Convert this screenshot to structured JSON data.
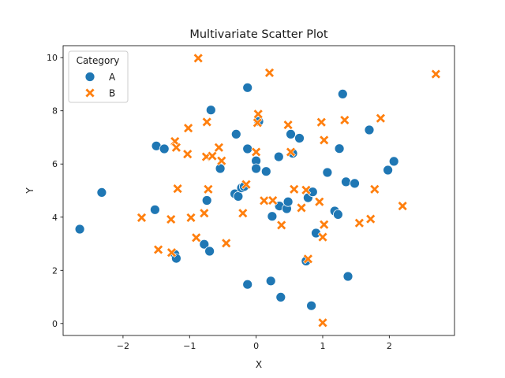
{
  "chart_data": {
    "type": "scatter",
    "title": "Multivariate Scatter Plot",
    "xlabel": "X",
    "ylabel": "Y",
    "xlim": [
      -2.9,
      2.98
    ],
    "ylim": [
      -0.45,
      10.45
    ],
    "xticks": [
      -2,
      -1,
      0,
      1,
      2
    ],
    "yticks": [
      0,
      2,
      4,
      6,
      8,
      10
    ],
    "xtick_labels": [
      "−2",
      "−1",
      "0",
      "1",
      "2"
    ],
    "ytick_labels": [
      "0",
      "2",
      "4",
      "6",
      "8",
      "10"
    ],
    "grid": false,
    "legend": {
      "title": "Category",
      "placement": "top-left",
      "entries": [
        "A",
        "B"
      ]
    },
    "series": [
      {
        "name": "A",
        "marker": "circle",
        "color": "#1f77b4",
        "points": [
          [
            -2.65,
            3.55
          ],
          [
            -2.32,
            4.93
          ],
          [
            -1.52,
            4.28
          ],
          [
            -1.5,
            6.68
          ],
          [
            -1.38,
            6.57
          ],
          [
            -1.22,
            2.6
          ],
          [
            -1.2,
            2.45
          ],
          [
            -0.78,
            2.98
          ],
          [
            -0.74,
            4.63
          ],
          [
            -0.7,
            2.72
          ],
          [
            -0.68,
            8.03
          ],
          [
            -0.54,
            5.83
          ],
          [
            -0.32,
            4.88
          ],
          [
            -0.3,
            7.12
          ],
          [
            -0.27,
            4.78
          ],
          [
            -0.22,
            5.1
          ],
          [
            -0.18,
            5.15
          ],
          [
            -0.13,
            6.57
          ],
          [
            -0.13,
            8.87
          ],
          [
            -0.13,
            1.47
          ],
          [
            0.0,
            6.12
          ],
          [
            0.0,
            5.83
          ],
          [
            0.04,
            7.6
          ],
          [
            0.15,
            5.72
          ],
          [
            0.22,
            1.6
          ],
          [
            0.24,
            4.03
          ],
          [
            0.34,
            6.27
          ],
          [
            0.35,
            4.42
          ],
          [
            0.37,
            0.99
          ],
          [
            0.46,
            4.32
          ],
          [
            0.48,
            4.58
          ],
          [
            0.52,
            7.12
          ],
          [
            0.55,
            6.4
          ],
          [
            0.65,
            6.97
          ],
          [
            0.75,
            2.35
          ],
          [
            0.78,
            4.73
          ],
          [
            0.83,
            0.67
          ],
          [
            0.85,
            4.95
          ],
          [
            0.9,
            3.4
          ],
          [
            1.07,
            5.68
          ],
          [
            1.18,
            4.23
          ],
          [
            1.23,
            4.1
          ],
          [
            1.25,
            6.58
          ],
          [
            1.3,
            8.63
          ],
          [
            1.35,
            5.33
          ],
          [
            1.38,
            1.77
          ],
          [
            1.48,
            5.27
          ],
          [
            1.7,
            7.28
          ],
          [
            1.98,
            5.77
          ],
          [
            2.07,
            6.1
          ]
        ]
      },
      {
        "name": "B",
        "marker": "x",
        "color": "#ff7f0e",
        "points": [
          [
            -1.72,
            3.98
          ],
          [
            -1.47,
            2.78
          ],
          [
            -1.28,
            3.92
          ],
          [
            -1.27,
            2.67
          ],
          [
            -1.22,
            6.85
          ],
          [
            -1.2,
            6.62
          ],
          [
            -1.18,
            5.07
          ],
          [
            -1.03,
            6.37
          ],
          [
            -1.02,
            7.35
          ],
          [
            -0.98,
            3.98
          ],
          [
            -0.9,
            3.23
          ],
          [
            -0.87,
            9.98
          ],
          [
            -0.78,
            4.15
          ],
          [
            -0.75,
            6.27
          ],
          [
            -0.74,
            7.58
          ],
          [
            -0.72,
            5.05
          ],
          [
            -0.66,
            6.3
          ],
          [
            -0.56,
            6.62
          ],
          [
            -0.52,
            6.12
          ],
          [
            -0.45,
            3.02
          ],
          [
            -0.2,
            4.15
          ],
          [
            -0.15,
            5.23
          ],
          [
            0.0,
            6.45
          ],
          [
            0.02,
            7.55
          ],
          [
            0.03,
            7.88
          ],
          [
            0.12,
            4.62
          ],
          [
            0.2,
            9.43
          ],
          [
            0.25,
            4.63
          ],
          [
            0.38,
            3.7
          ],
          [
            0.48,
            7.47
          ],
          [
            0.52,
            6.45
          ],
          [
            0.57,
            5.05
          ],
          [
            0.68,
            4.35
          ],
          [
            0.75,
            5.02
          ],
          [
            0.78,
            2.43
          ],
          [
            0.95,
            4.58
          ],
          [
            0.98,
            7.57
          ],
          [
            1.0,
            3.25
          ],
          [
            1.02,
            3.72
          ],
          [
            1.02,
            6.9
          ],
          [
            1.0,
            0.03
          ],
          [
            1.33,
            7.65
          ],
          [
            1.55,
            3.78
          ],
          [
            1.72,
            3.93
          ],
          [
            1.78,
            5.05
          ],
          [
            1.87,
            7.72
          ],
          [
            2.2,
            4.42
          ],
          [
            2.7,
            9.38
          ]
        ]
      }
    ]
  }
}
